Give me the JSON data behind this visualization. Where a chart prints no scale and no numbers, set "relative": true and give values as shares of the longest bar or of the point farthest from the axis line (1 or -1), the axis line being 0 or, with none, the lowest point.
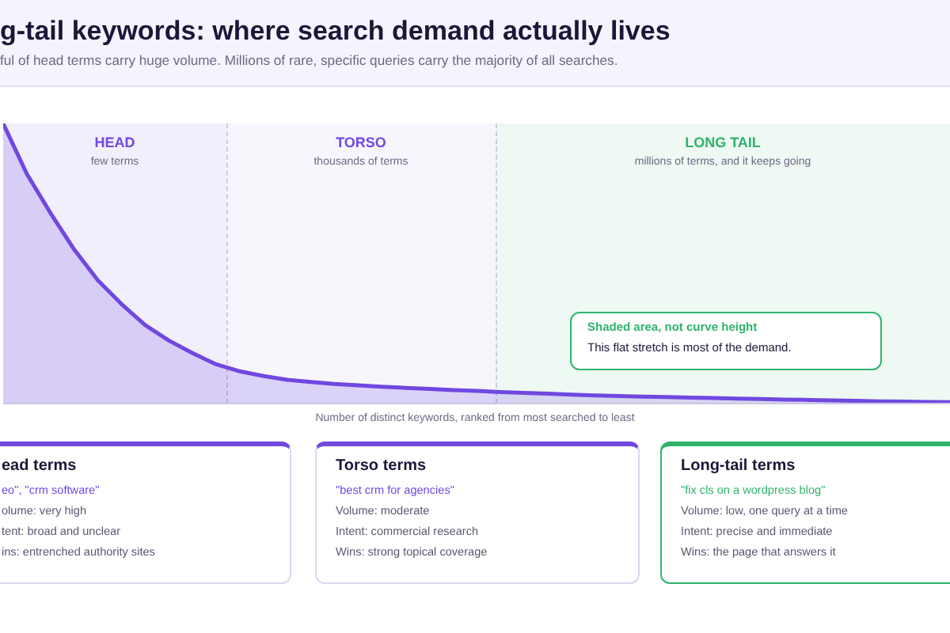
{
  "chart_data": [
    {
      "type": "area",
      "title": "g-tail keywords: where search demand actually lives",
      "subtitle": "ful of head terms carry huge volume. Millions of rare, specific queries carry the majority of all searches.",
      "xlabel": "Number of distinct keywords, ranked from most searched to least",
      "relative": true,
      "categories": [
        null,
        null,
        null,
        null,
        null,
        null,
        null,
        null,
        null,
        null,
        null,
        null,
        null,
        null,
        null,
        null,
        null,
        null,
        null,
        null,
        null,
        null,
        null,
        null,
        null,
        null,
        null,
        null,
        null,
        null,
        null,
        null,
        null,
        null,
        null,
        null,
        null,
        null,
        null,
        null,
        null
      ],
      "series": [
        {
          "color": "#7048e0",
          "values": [
            1,
            0.82,
            0.68,
            0.55,
            0.44,
            0.355,
            0.28,
            0.225,
            0.18,
            0.14,
            0.115,
            0.098,
            0.085,
            0.077,
            0.07,
            0.065,
            0.06,
            0.056,
            0.052,
            0.048,
            0.045,
            0.041,
            0.038,
            0.035,
            0.032,
            0.029,
            0.027,
            0.025,
            0.023,
            0.021,
            0.02,
            0.018,
            0.016,
            0.014,
            0.013,
            0.011,
            0.01,
            0.008,
            0.007,
            0.006,
            0.005
          ]
        }
      ],
      "annotations": [
        "HEAD",
        "few terms",
        "TORSO",
        "thousands of terms",
        "LONG TAIL",
        "millions of terms, and it keeps going",
        "Shaded area, not curve height",
        "This flat stretch is most of the demand."
      ]
    },
    {
      "type": "other",
      "title": "ead terms",
      "annotations": [
        "eo\", \"crm software\"",
        "olume: very high",
        "tent: broad and unclear",
        "ins: entrenched authority sites"
      ]
    },
    {
      "type": "other",
      "title": "Torso terms",
      "annotations": [
        "\"best crm for agencies\"",
        "Volume: moderate",
        "Intent: commercial research",
        "Wins: strong topical coverage"
      ]
    },
    {
      "type": "other",
      "title": "Long-tail terms",
      "annotations": [
        "\"fix cls on a wordpress blog\"",
        "Volume: low, one query at a time",
        "Intent: precise and immediate",
        "Wins: the page that answers it"
      ]
    }
  ]
}
